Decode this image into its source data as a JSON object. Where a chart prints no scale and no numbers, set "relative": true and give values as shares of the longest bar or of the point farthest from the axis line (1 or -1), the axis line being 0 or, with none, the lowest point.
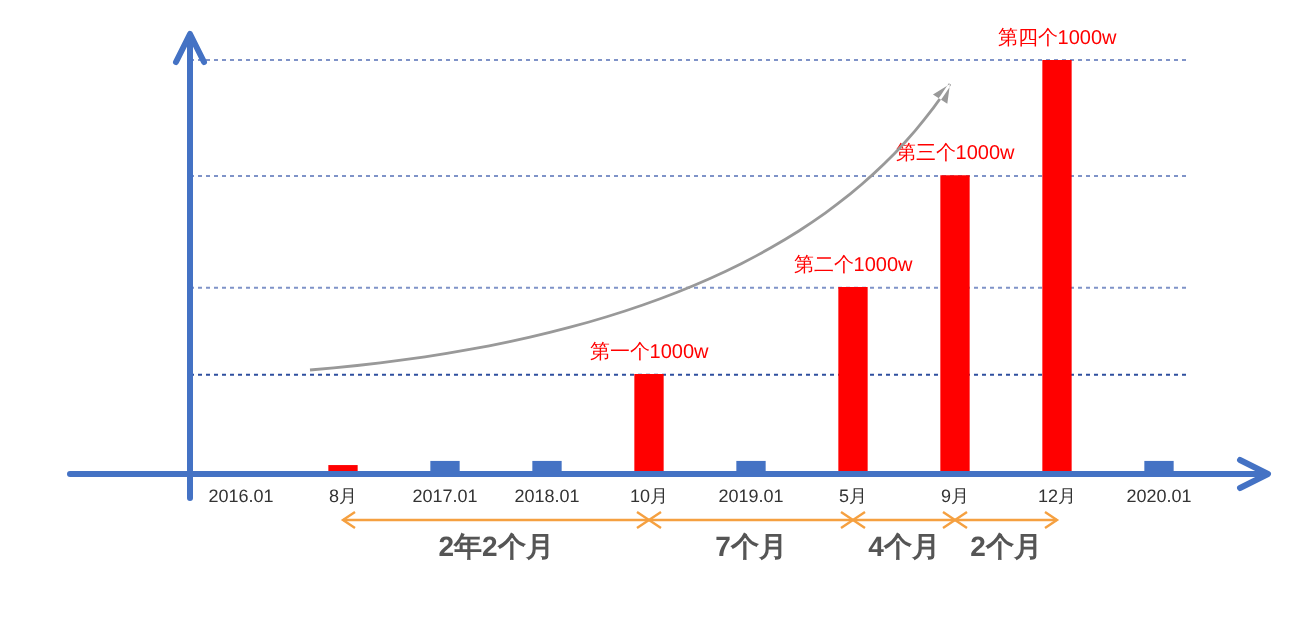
{
  "chart_data": {
    "type": "bar",
    "relative": true,
    "categories": [
      "2016.01",
      "8月",
      "2017.01",
      "2018.01",
      "10月",
      "2019.01",
      "5月",
      "9月",
      "12月",
      "2020.01"
    ],
    "values": [
      null,
      0.02,
      0.03,
      0.03,
      0.24,
      0.03,
      0.45,
      0.72,
      1,
      0.03
    ],
    "colors": [
      "#4472c4",
      "#ff0000",
      "#4472c4",
      "#4472c4",
      "#ff0000",
      "#4472c4",
      "#ff0000",
      "#ff0000",
      "#ff0000",
      "#4472c4"
    ],
    "ref_lines": [
      {
        "axis": "y",
        "value": 0.24,
        "color": "#2f4f9f",
        "line_style": "dotted"
      },
      {
        "axis": "y",
        "value": 0.45,
        "color": "#7f93c8",
        "line_style": "dotted"
      },
      {
        "axis": "y",
        "value": 0.72,
        "color": "#7f93c8",
        "line_style": "dotted"
      },
      {
        "axis": "y",
        "value": 1,
        "color": "#7f93c8",
        "line_style": "dotted"
      }
    ],
    "annotations": [
      {
        "text": "第一个1000w",
        "x": "10月",
        "y": 0.24
      },
      {
        "text": "第二个1000w",
        "x": "5月",
        "y": 0.45
      },
      {
        "text": "第三个1000w",
        "x": "9月",
        "y": 0.72
      },
      {
        "text": "第四个1000w",
        "x": "12月",
        "y": 1
      },
      "2年2个月",
      "7个月",
      "4个月",
      "2个月"
    ],
    "grid": false,
    "legend": false
  }
}
